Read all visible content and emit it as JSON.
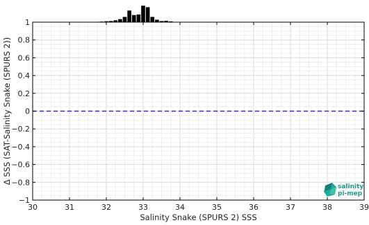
{
  "chart_data": {
    "type": "line",
    "xlabel": "Salinity Snake (SPURS 2) SSS",
    "ylabel": "Δ SSS (SAT-Salinity Snake (SPURS 2))",
    "xlim": [
      30,
      39
    ],
    "ylim": [
      -1,
      1
    ],
    "x_ticks": [
      30,
      31,
      32,
      33,
      34,
      35,
      36,
      37,
      38,
      39
    ],
    "y_ticks": [
      -1,
      -0.8,
      -0.6,
      -0.4,
      -0.2,
      0,
      0.2,
      0.4,
      0.6,
      0.8,
      1
    ],
    "x_tick_labels": [
      "30",
      "31",
      "32",
      "33",
      "34",
      "35",
      "36",
      "37",
      "38",
      "39"
    ],
    "y_tick_labels": [
      "−1",
      "−0.8",
      "−0.6",
      "−0.4",
      "−0.2",
      "0",
      "0.2",
      "0.4",
      "0.6",
      "0.8",
      "1"
    ],
    "grid": true,
    "reference_line": {
      "y": 0,
      "style": "dashed",
      "color": "#2b2bd6"
    },
    "histogram": {
      "bin_width": 0.125,
      "bins": [
        {
          "x": 31.75,
          "value": 0.02
        },
        {
          "x": 31.875,
          "value": 0.03
        },
        {
          "x": 32.0,
          "value": 0.05
        },
        {
          "x": 32.125,
          "value": 0.06
        },
        {
          "x": 32.25,
          "value": 0.1
        },
        {
          "x": 32.375,
          "value": 0.16
        },
        {
          "x": 32.5,
          "value": 0.28
        },
        {
          "x": 32.625,
          "value": 0.62
        },
        {
          "x": 32.75,
          "value": 0.38
        },
        {
          "x": 32.875,
          "value": 0.41
        },
        {
          "x": 33.0,
          "value": 0.88
        },
        {
          "x": 33.125,
          "value": 0.8
        },
        {
          "x": 33.25,
          "value": 0.28
        },
        {
          "x": 33.375,
          "value": 0.13
        },
        {
          "x": 33.5,
          "value": 0.06
        },
        {
          "x": 33.625,
          "value": 0.07
        },
        {
          "x": 33.75,
          "value": 0.04
        }
      ]
    },
    "bar_color": "#000000"
  },
  "logo": {
    "line1": "salinity",
    "line2": "pi-mep",
    "color": "#1d9a8a"
  }
}
